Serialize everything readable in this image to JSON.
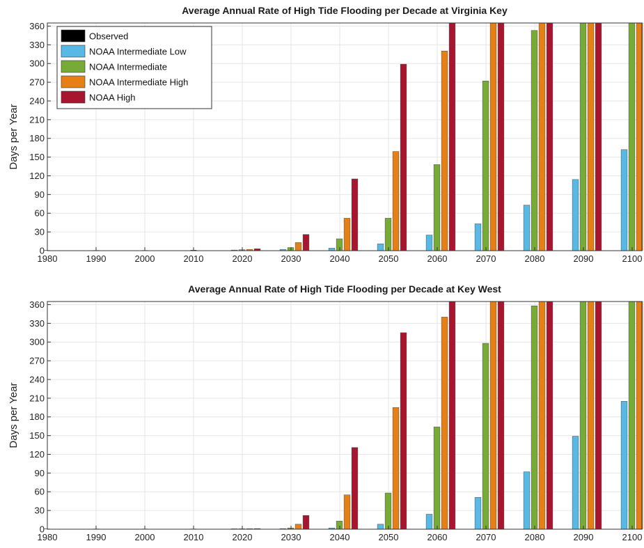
{
  "colors": {
    "Observed": "#000000",
    "NOAA Intermediate Low": "#56b9e6",
    "NOAA Intermediate": "#76ab35",
    "NOAA Intermediate High": "#e67f14",
    "NOAA High": "#a8152f"
  },
  "chart_data": [
    {
      "type": "bar",
      "title": "Average Annual Rate of High Tide Flooding per Decade at Virginia Key",
      "xlabel": "",
      "ylabel": "Days per Year",
      "ylim": [
        0,
        365
      ],
      "yticks": [
        0,
        30,
        60,
        90,
        120,
        150,
        180,
        210,
        240,
        270,
        300,
        330,
        360
      ],
      "categories": [
        "1980",
        "1990",
        "2000",
        "2010",
        "2020",
        "2030",
        "2040",
        "2050",
        "2060",
        "2070",
        "2080",
        "2090",
        "2100"
      ],
      "grid": true,
      "legend_position": "top-left",
      "series": [
        {
          "name": "Observed",
          "values": [
            0,
            0.2,
            0.5,
            1,
            null,
            null,
            null,
            null,
            null,
            null,
            null,
            null,
            null
          ]
        },
        {
          "name": "NOAA Intermediate Low",
          "values": [
            null,
            null,
            null,
            null,
            1,
            2,
            4,
            11,
            25,
            43,
            73,
            114,
            162
          ]
        },
        {
          "name": "NOAA Intermediate",
          "values": [
            null,
            null,
            null,
            null,
            1.5,
            5,
            19,
            52,
            138,
            272,
            353,
            365,
            365
          ]
        },
        {
          "name": "NOAA Intermediate High",
          "values": [
            null,
            null,
            null,
            null,
            2,
            13,
            52,
            159,
            320,
            365,
            365,
            365,
            365
          ]
        },
        {
          "name": "NOAA High",
          "values": [
            null,
            null,
            null,
            null,
            3,
            26,
            115,
            299,
            365,
            365,
            365,
            365,
            365
          ]
        }
      ]
    },
    {
      "type": "bar",
      "title": "Average Annual Rate of High Tide Flooding per Decade at Key West",
      "xlabel": "",
      "ylabel": "Days per Year",
      "ylim": [
        0,
        365
      ],
      "yticks": [
        0,
        30,
        60,
        90,
        120,
        150,
        180,
        210,
        240,
        270,
        300,
        330,
        360
      ],
      "categories": [
        "1980",
        "1990",
        "2000",
        "2010",
        "2020",
        "2030",
        "2040",
        "2050",
        "2060",
        "2070",
        "2080",
        "2090",
        "2100"
      ],
      "grid": true,
      "legend_position": "",
      "series": [
        {
          "name": "Observed",
          "values": [
            0,
            0,
            0,
            0,
            null,
            null,
            null,
            null,
            null,
            null,
            null,
            null,
            null
          ]
        },
        {
          "name": "NOAA Intermediate Low",
          "values": [
            null,
            null,
            null,
            null,
            0.3,
            1,
            2,
            8,
            24,
            51,
            92,
            149,
            205
          ]
        },
        {
          "name": "NOAA Intermediate",
          "values": [
            null,
            null,
            null,
            null,
            0.5,
            2,
            13,
            58,
            164,
            298,
            358,
            365,
            365
          ]
        },
        {
          "name": "NOAA Intermediate High",
          "values": [
            null,
            null,
            null,
            null,
            0.8,
            8,
            55,
            195,
            340,
            365,
            365,
            365,
            365
          ]
        },
        {
          "name": "NOAA High",
          "values": [
            null,
            null,
            null,
            null,
            1,
            22,
            131,
            315,
            365,
            365,
            365,
            365,
            365
          ]
        }
      ]
    }
  ]
}
